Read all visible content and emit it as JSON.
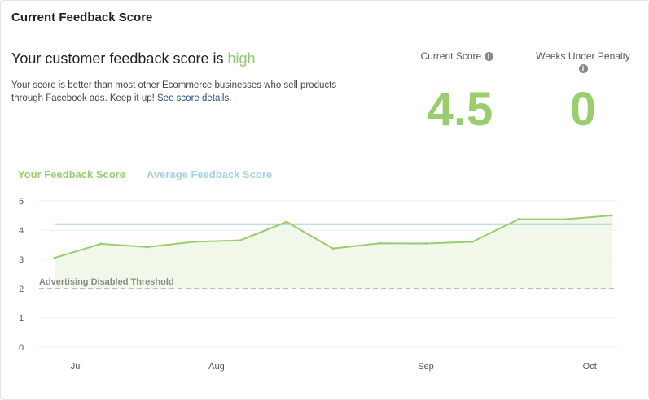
{
  "card": {
    "title": "Current Feedback Score"
  },
  "summary": {
    "headline_prefix": "Your customer feedback score is ",
    "level": "high",
    "description": "Your score is better than most other Ecommerce businesses who sell products through Facebook ads. Keep it up! ",
    "details_link": "See score details."
  },
  "stats": {
    "current_score_label": "Current Score",
    "current_score": "4.5",
    "weeks_label": "Weeks Under Penalty",
    "weeks": "0",
    "info_icon": "i"
  },
  "colors": {
    "score": "#9acd6e",
    "average": "#a9d0de",
    "threshold": "#bbbbbb"
  },
  "chart_data": {
    "type": "line",
    "legend": [
      "Your Feedback Score",
      "Average Feedback Score"
    ],
    "legend_position": "top-left",
    "series": [
      {
        "name": "Your Feedback Score",
        "values": [
          3.05,
          3.53,
          3.42,
          3.6,
          3.65,
          4.28,
          3.37,
          3.55,
          3.54,
          3.6,
          4.37,
          4.37,
          4.5
        ],
        "area": true
      },
      {
        "name": "Average Feedback Score",
        "values": [
          4.2,
          4.2,
          4.2,
          4.2,
          4.2,
          4.2,
          4.2,
          4.2,
          4.2,
          4.2,
          4.2,
          4.2,
          4.2
        ]
      }
    ],
    "threshold": {
      "label": "Advertising Disabled Threshold",
      "value": 2
    },
    "x_ticks": [
      "Jul",
      "Aug",
      "Sep",
      "Oct"
    ],
    "y_ticks": [
      0,
      1,
      2,
      3,
      4,
      5
    ],
    "ylim": [
      0,
      5
    ],
    "grid": true
  }
}
